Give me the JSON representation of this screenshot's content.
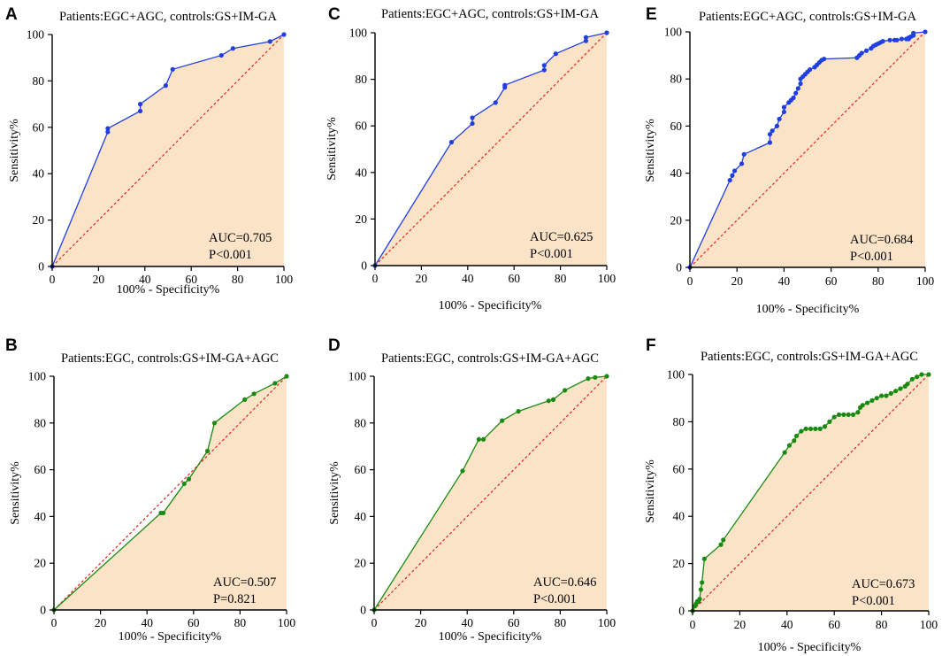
{
  "colors": {
    "fill": "#fbe3c8",
    "diagonal": "#e8211d",
    "blue": "#1f3fe0",
    "green": "#1a8a12"
  },
  "chart_data": [
    {
      "id": "A",
      "type": "line",
      "letter": "A",
      "title": "Patients:EGC+AGC, controls:GS+IM-GA",
      "xlabel": "100% - Specificity%",
      "ylabel": "Sensitivity%",
      "xlim": [
        0,
        100
      ],
      "ylim": [
        0,
        100
      ],
      "ticks": [
        0,
        20,
        40,
        60,
        80,
        100
      ],
      "auc": "AUC=0.705",
      "p": "P<0.001",
      "color": "blue",
      "x": [
        0,
        24,
        24,
        38,
        38,
        49,
        52,
        73,
        78,
        94,
        100
      ],
      "y": [
        0,
        58,
        59.5,
        67,
        70,
        78,
        85,
        91,
        94,
        97,
        100
      ]
    },
    {
      "id": "B",
      "type": "line",
      "letter": "B",
      "title": "Patients:EGC, controls:GS+IM-GA+AGC",
      "xlabel": "100% - Specificity%",
      "ylabel": "Sensitivity%",
      "xlim": [
        0,
        100
      ],
      "ylim": [
        0,
        100
      ],
      "ticks": [
        0,
        20,
        40,
        60,
        80,
        100
      ],
      "auc": "AUC=0.507",
      "p": "P=0.821",
      "color": "green",
      "x": [
        0,
        46,
        47,
        56,
        58,
        66,
        69,
        82,
        86,
        95,
        100
      ],
      "y": [
        0,
        41.5,
        41.5,
        54,
        56,
        68,
        80,
        90,
        92.5,
        97,
        100
      ]
    },
    {
      "id": "C",
      "type": "line",
      "letter": "C",
      "title": "Patients:EGC+AGC, controls:GS+IM-GA",
      "xlabel": "100% - Specificity%",
      "ylabel": "Sensitivity%",
      "xlim": [
        0,
        100
      ],
      "ylim": [
        0,
        100
      ],
      "ticks": [
        0,
        20,
        40,
        60,
        80,
        100
      ],
      "auc": "AUC=0.625",
      "p": "P<0.001",
      "color": "blue",
      "x": [
        0,
        33,
        42,
        42,
        52,
        56,
        56,
        73,
        73,
        78,
        91,
        91,
        100
      ],
      "y": [
        0,
        53,
        61,
        63.5,
        70,
        76.5,
        77.5,
        84,
        86,
        91,
        96.5,
        98,
        100
      ]
    },
    {
      "id": "D",
      "type": "line",
      "letter": "D",
      "title": "Patients:EGC, controls:GS+IM-GA+AGC",
      "xlabel": "100% - Specificity%",
      "ylabel": "Sensitivity%",
      "xlim": [
        0,
        100
      ],
      "ylim": [
        0,
        100
      ],
      "ticks": [
        0,
        20,
        40,
        60,
        80,
        100
      ],
      "auc": "AUC=0.646",
      "p": "P<0.001",
      "color": "green",
      "x": [
        0,
        38,
        45,
        47,
        55,
        62,
        75,
        77,
        82,
        92,
        95,
        100
      ],
      "y": [
        0,
        59.5,
        73,
        73,
        81,
        85,
        89.5,
        90,
        94,
        99,
        99.5,
        100
      ]
    },
    {
      "id": "E",
      "type": "line",
      "letter": "E",
      "title": "Patients:EGC+AGC, controls:GS+IM-GA",
      "xlabel": "100% - Specificity%",
      "ylabel": "Sensitivity%",
      "xlim": [
        0,
        100
      ],
      "ylim": [
        0,
        100
      ],
      "ticks": [
        0,
        20,
        40,
        60,
        80,
        100
      ],
      "auc": "AUC=0.684",
      "p": "P<0.001",
      "color": "blue",
      "x": [
        0,
        17,
        18,
        19,
        22,
        23,
        34,
        34,
        35,
        37,
        38,
        40,
        40,
        42,
        43,
        44,
        45,
        46,
        47,
        47,
        48,
        49,
        50,
        51,
        53,
        54,
        55,
        56,
        57,
        71,
        72,
        73,
        75,
        77,
        78,
        79,
        80,
        81,
        82,
        85,
        87,
        88,
        90,
        92,
        93,
        93,
        94,
        95,
        95,
        100
      ],
      "y": [
        0,
        37,
        39,
        41,
        44,
        48,
        53,
        56.5,
        58,
        60,
        63,
        66,
        68,
        70,
        71,
        72,
        74,
        76,
        78,
        80,
        81,
        82,
        83,
        84,
        85,
        86,
        87,
        88,
        88.5,
        89,
        90,
        91,
        92,
        93,
        94,
        94.5,
        95,
        95.5,
        96,
        96.5,
        96.5,
        96.5,
        97,
        97,
        97,
        97.5,
        98,
        98.5,
        99.5,
        100
      ]
    },
    {
      "id": "F",
      "type": "line",
      "letter": "F",
      "title": "Patients:EGC, controls:GS+IM-GA+AGC",
      "xlabel": "100% - Specificity%",
      "ylabel": "Sensitivity%",
      "xlim": [
        0,
        100
      ],
      "ylim": [
        0,
        100
      ],
      "ticks": [
        0,
        20,
        40,
        60,
        80,
        100
      ],
      "auc": "AUC=0.673",
      "p": "P<0.001",
      "color": "green",
      "x": [
        0,
        1,
        1.5,
        2,
        2.5,
        3,
        3.5,
        4,
        5,
        12,
        13,
        39,
        41,
        43,
        44,
        46,
        48,
        50,
        52,
        54,
        56,
        58,
        60,
        62,
        64,
        66,
        68,
        70,
        71,
        72,
        74,
        76,
        78,
        80,
        82,
        84,
        86,
        88,
        90,
        91,
        93,
        95,
        97,
        100
      ],
      "y": [
        0,
        2,
        3,
        4,
        4,
        5,
        9,
        12,
        22,
        28,
        30,
        67,
        70,
        72,
        74,
        76,
        77,
        77,
        77,
        77,
        78,
        80,
        82,
        83,
        83,
        83,
        83,
        84,
        86,
        87,
        88,
        89,
        90,
        91,
        91,
        92,
        93,
        94,
        95,
        96,
        98,
        99,
        100,
        100
      ]
    }
  ]
}
